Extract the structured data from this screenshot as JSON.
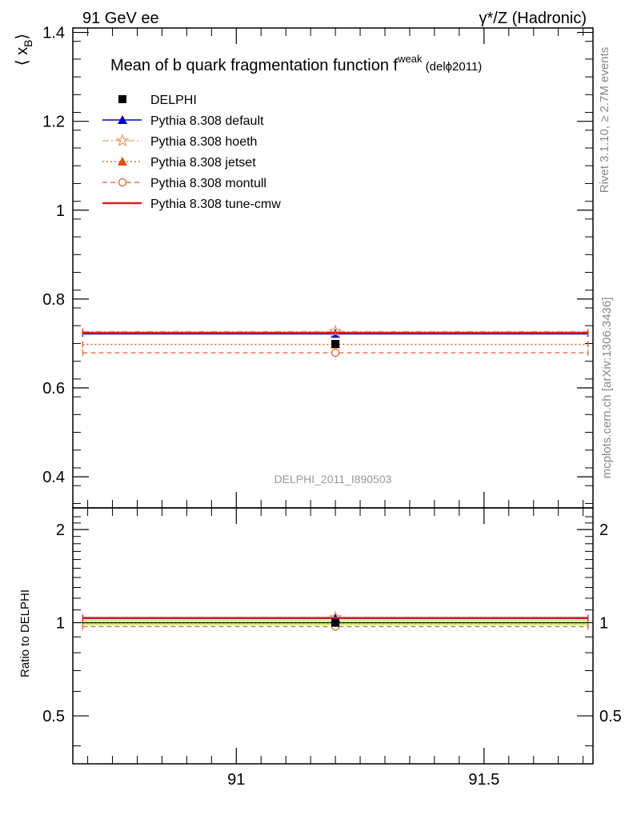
{
  "header": {
    "left": "91 GeV ee",
    "right": "γ*/Z (Hadronic)"
  },
  "title": {
    "main": "Mean of b quark fragmentation function f",
    "sup": "weak",
    "suffix": " (delϕ2011)"
  },
  "side_text": {
    "rivet": "Rivet 3.1.10, ≥ 2.7M events",
    "mcplots": "mcplots.cern.ch [arXiv:1306.3436]"
  },
  "analysis_id": "DELPHI_2011_I890503",
  "axes": {
    "ylabel_main": "⟨ x_B ⟩",
    "ylabel_main_base": "⟨ x",
    "ylabel_main_sub": "B",
    "ylabel_main_close": "⟩",
    "ylabel_ratio": "Ratio to DELPHI"
  },
  "chart_data": [
    {
      "type": "scatter",
      "panel": "main",
      "xlim": [
        90.67,
        91.72
      ],
      "ylim": [
        0.33,
        1.41
      ],
      "y_ticks": [
        0.4,
        0.6,
        0.8,
        1.0,
        1.2,
        1.4
      ],
      "y_tick_labels": [
        "0.4",
        "0.6",
        "0.8",
        "1",
        "1.2",
        "1.4"
      ],
      "x_ticks": [
        91,
        91.5
      ],
      "x_tick_labels": [
        "91",
        "91.5"
      ],
      "legend_position": "top-left",
      "series": [
        {
          "name": "DELPHI",
          "style": "data",
          "color": "#000000",
          "marker": "square",
          "x": 91.2,
          "y": 0.699
        },
        {
          "name": "Pythia 8.308 default",
          "style": "solid",
          "color": "#0000cc",
          "marker": "triangle",
          "x": 91.2,
          "y": 0.722,
          "xrange": [
            90.69,
            91.71
          ]
        },
        {
          "name": "Pythia 8.308 hoeth",
          "style": "dashdot",
          "color": "#e8a060",
          "marker": "star",
          "x": 91.2,
          "y": 0.727,
          "xrange": [
            90.69,
            91.71
          ]
        },
        {
          "name": "Pythia 8.308 jetset",
          "style": "dotted",
          "color": "#e05010",
          "marker": "triangle",
          "x": 91.2,
          "y": 0.698,
          "xrange": [
            90.69,
            91.71
          ]
        },
        {
          "name": "Pythia 8.308 montull",
          "style": "dashed",
          "color": "#e06030",
          "marker": "circle-open",
          "x": 91.2,
          "y": 0.679,
          "xrange": [
            90.69,
            91.71
          ]
        },
        {
          "name": "Pythia 8.308 tune-cmw",
          "style": "solid-thick",
          "color": "#e02020",
          "marker": "none",
          "x": 91.2,
          "y": 0.724,
          "xrange": [
            90.69,
            91.71
          ]
        }
      ]
    },
    {
      "type": "scatter",
      "panel": "ratio",
      "xlim": [
        90.67,
        91.72
      ],
      "ylim": [
        0.35,
        2.35
      ],
      "y_ticks": [
        0.5,
        1.0,
        2.0
      ],
      "y_tick_labels": [
        "0.5",
        "1",
        "2"
      ],
      "x_ticks": [
        91,
        91.5
      ],
      "x_tick_labels": [
        "91",
        "91.5"
      ],
      "band": {
        "low": 0.98,
        "high": 1.02,
        "color": "#d6f07a"
      },
      "series": [
        {
          "name": "DELPHI",
          "color": "#000000",
          "marker": "square",
          "x": 91.2,
          "y": 1.0
        },
        {
          "name": "Pythia 8.308 default",
          "style": "solid",
          "color": "#0000cc",
          "marker": "triangle",
          "x": 91.2,
          "y": 1.033
        },
        {
          "name": "Pythia 8.308 hoeth",
          "style": "dashdot",
          "color": "#e8a060",
          "marker": "star",
          "x": 91.2,
          "y": 1.04
        },
        {
          "name": "Pythia 8.308 jetset",
          "style": "dotted",
          "color": "#e05010",
          "marker": "triangle",
          "x": 91.2,
          "y": 0.998
        },
        {
          "name": "Pythia 8.308 montull",
          "style": "dashed",
          "color": "#e06030",
          "marker": "circle-open",
          "x": 91.2,
          "y": 0.971
        },
        {
          "name": "Pythia 8.308 tune-cmw",
          "style": "solid-thick",
          "color": "#e02020",
          "marker": "none",
          "x": 91.2,
          "y": 1.036
        }
      ]
    }
  ]
}
